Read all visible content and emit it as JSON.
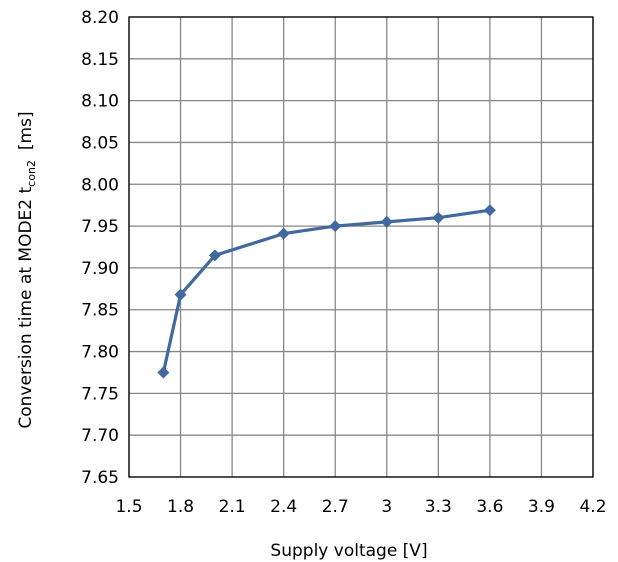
{
  "chart_data": {
    "type": "line",
    "xlabel": "Supply voltage [V]",
    "ylabel": {
      "prefix": "Conversion time at MODE2 t",
      "subscript": "con2",
      "suffix": "[ms]"
    },
    "xlim": [
      1.5,
      4.2
    ],
    "ylim": [
      7.65,
      8.2
    ],
    "x_ticks": [
      "1.5",
      "1.8",
      "2.1",
      "2.4",
      "2.7",
      "3",
      "3.3",
      "3.6",
      "3.9",
      "4.2"
    ],
    "y_ticks": [
      "7.65",
      "7.70",
      "7.75",
      "7.80",
      "7.85",
      "7.90",
      "7.95",
      "8.00",
      "8.05",
      "8.10",
      "8.15",
      "8.20"
    ],
    "grid": true,
    "series": [
      {
        "x": [
          1.7,
          1.8,
          2.0,
          2.4,
          2.7,
          3.0,
          3.3,
          3.6
        ],
        "y": [
          7.775,
          7.868,
          7.915,
          7.941,
          7.95,
          7.955,
          7.96,
          7.969
        ]
      }
    ],
    "colors": {
      "series": "#41699E",
      "grid": "#878787",
      "axis": "#000000"
    }
  }
}
